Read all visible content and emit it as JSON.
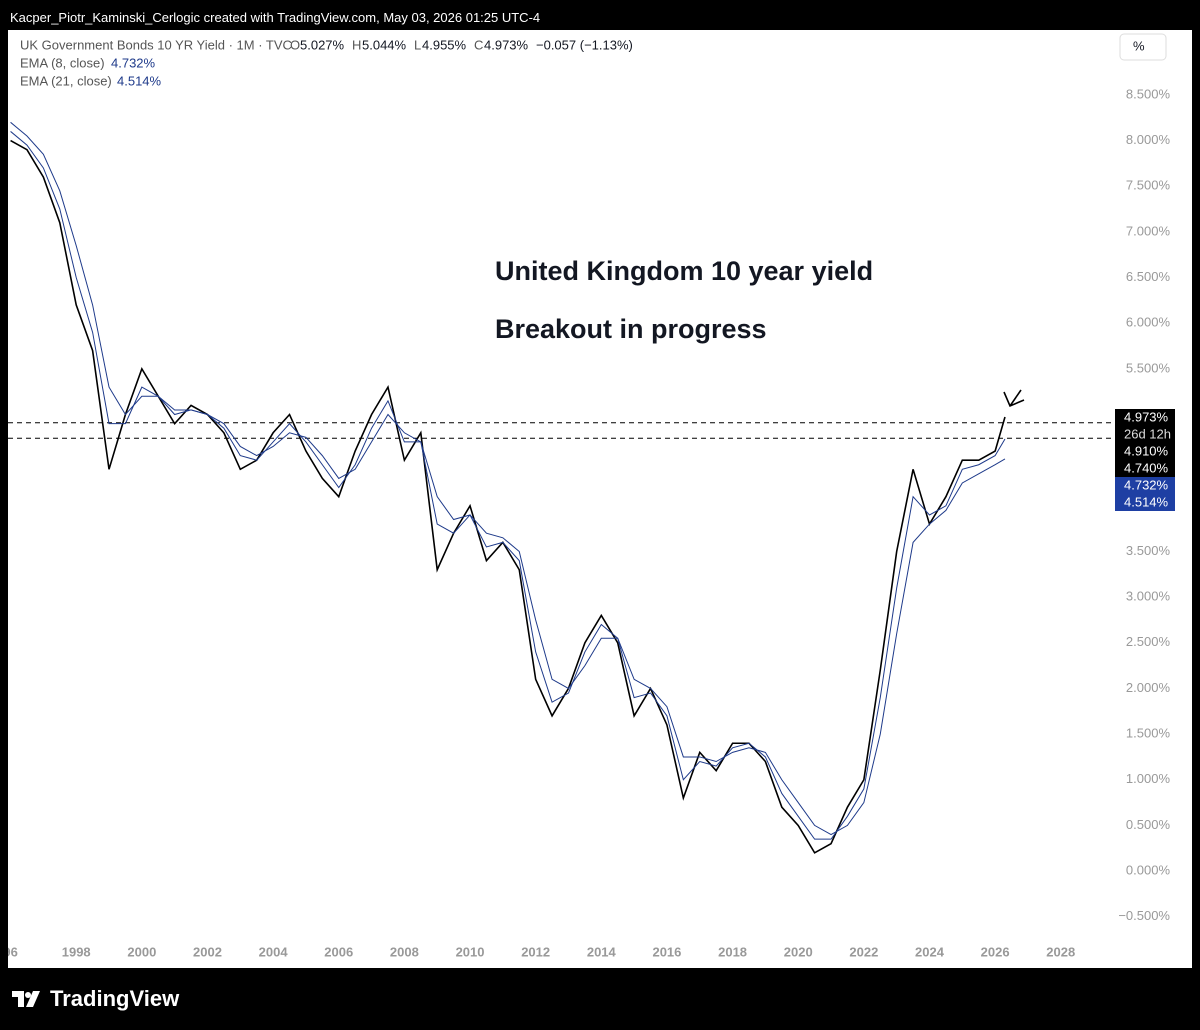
{
  "header": {
    "text": "Kacper_Piotr_Kaminski_Cerlogic created with TradingView.com, May 03, 2026 01:25 UTC-4"
  },
  "footer": {
    "brand": "TradingView"
  },
  "chart_data": {
    "type": "line",
    "legend": {
      "symbol": "UK Government Bonds 10 YR Yield · 1M · TVC",
      "o_key": "O",
      "o": "5.027%",
      "h_key": "H",
      "h": "5.044%",
      "l_key": "L",
      "l": "4.955%",
      "c_key": "C",
      "c": "4.973%",
      "change": "−0.057 (−1.13%)",
      "ema8_name": "EMA (8, close)",
      "ema8": "4.732%",
      "ema21_name": "EMA (21, close)",
      "ema21": "4.514%"
    },
    "scale_button": "%",
    "annotations": [
      "United Kingdom 10 year yield",
      "Breakout in progress"
    ],
    "x": [
      1996.0,
      1996.5,
      1997.0,
      1997.5,
      1998.0,
      1998.5,
      1999.0,
      1999.5,
      2000.0,
      2000.5,
      2001.0,
      2001.5,
      2002.0,
      2002.5,
      2003.0,
      2003.5,
      2004.0,
      2004.5,
      2005.0,
      2005.5,
      2006.0,
      2006.5,
      2007.0,
      2007.5,
      2008.0,
      2008.5,
      2009.0,
      2009.5,
      2010.0,
      2010.5,
      2011.0,
      2011.5,
      2012.0,
      2012.5,
      2013.0,
      2013.5,
      2014.0,
      2014.5,
      2015.0,
      2015.5,
      2016.0,
      2016.5,
      2017.0,
      2017.5,
      2018.0,
      2018.5,
      2019.0,
      2019.5,
      2020.0,
      2020.5,
      2021.0,
      2021.5,
      2022.0,
      2022.5,
      2023.0,
      2023.5,
      2024.0,
      2024.5,
      2025.0,
      2025.5,
      2026.0,
      2026.3
    ],
    "series": [
      {
        "name": "UK 10Y close",
        "color": "#000000",
        "values": [
          8.0,
          7.9,
          7.6,
          7.1,
          6.2,
          5.7,
          4.4,
          5.0,
          5.5,
          5.2,
          4.9,
          5.1,
          5.0,
          4.8,
          4.4,
          4.5,
          4.8,
          5.0,
          4.6,
          4.3,
          4.1,
          4.6,
          5.0,
          5.3,
          4.5,
          4.8,
          3.3,
          3.7,
          4.0,
          3.4,
          3.6,
          3.3,
          2.1,
          1.7,
          2.0,
          2.5,
          2.8,
          2.5,
          1.7,
          2.0,
          1.6,
          0.8,
          1.3,
          1.1,
          1.4,
          1.4,
          1.2,
          0.7,
          0.5,
          0.2,
          0.3,
          0.7,
          1.0,
          2.2,
          3.5,
          4.4,
          3.8,
          4.1,
          4.5,
          4.5,
          4.6,
          4.973
        ]
      },
      {
        "name": "EMA (8, close)",
        "color": "#1e3a8a",
        "values": [
          8.1,
          7.95,
          7.7,
          7.25,
          6.5,
          5.9,
          4.9,
          4.9,
          5.3,
          5.2,
          5.0,
          5.05,
          5.0,
          4.85,
          4.55,
          4.5,
          4.7,
          4.9,
          4.7,
          4.45,
          4.2,
          4.45,
          4.85,
          5.15,
          4.7,
          4.7,
          3.8,
          3.7,
          3.9,
          3.55,
          3.6,
          3.4,
          2.4,
          1.85,
          1.95,
          2.4,
          2.7,
          2.55,
          1.9,
          1.95,
          1.7,
          1.0,
          1.2,
          1.15,
          1.35,
          1.4,
          1.25,
          0.85,
          0.6,
          0.35,
          0.35,
          0.6,
          0.9,
          1.9,
          3.1,
          4.1,
          3.9,
          4.0,
          4.4,
          4.45,
          4.55,
          4.732
        ]
      },
      {
        "name": "EMA (21, close)",
        "color": "#1e3a8a",
        "values": [
          8.2,
          8.05,
          7.85,
          7.45,
          6.85,
          6.2,
          5.3,
          5.0,
          5.2,
          5.2,
          5.05,
          5.05,
          5.0,
          4.9,
          4.65,
          4.55,
          4.65,
          4.8,
          4.75,
          4.55,
          4.3,
          4.4,
          4.7,
          5.0,
          4.8,
          4.7,
          4.1,
          3.85,
          3.9,
          3.7,
          3.65,
          3.5,
          2.75,
          2.1,
          2.0,
          2.25,
          2.55,
          2.55,
          2.1,
          2.0,
          1.8,
          1.25,
          1.25,
          1.2,
          1.3,
          1.35,
          1.3,
          1.0,
          0.75,
          0.5,
          0.4,
          0.5,
          0.75,
          1.5,
          2.6,
          3.6,
          3.8,
          3.95,
          4.25,
          4.35,
          4.45,
          4.514
        ]
      }
    ],
    "hlines": [
      4.91,
      4.74
    ],
    "price_labels": [
      {
        "value": 4.973,
        "label": "4.973%",
        "color": "#000000",
        "sub": "26d 12h"
      },
      {
        "value": 4.91,
        "label": "4.910%",
        "color": "#000000"
      },
      {
        "value": 4.74,
        "label": "4.740%",
        "color": "#000000"
      },
      {
        "value": 4.732,
        "label": "4.732%",
        "color": "#1e3fa3"
      },
      {
        "value": 4.514,
        "label": "4.514%",
        "color": "#1e3fa3"
      }
    ],
    "xlim": [
      1995.8,
      2029.5
    ],
    "ylim": [
      -0.7,
      9.2
    ],
    "xticks": [
      {
        "value": 1996,
        "label": "96"
      },
      1998,
      2000,
      2002,
      2004,
      2006,
      2008,
      2010,
      2012,
      2014,
      2016,
      2018,
      2020,
      2022,
      2024,
      2026,
      2028
    ],
    "yticks": [
      {
        "value": 8.5,
        "label": "8.500%"
      },
      {
        "value": 8.0,
        "label": "8.000%"
      },
      {
        "value": 7.5,
        "label": "7.500%"
      },
      {
        "value": 7.0,
        "label": "7.000%"
      },
      {
        "value": 6.5,
        "label": "6.500%"
      },
      {
        "value": 6.0,
        "label": "6.000%"
      },
      {
        "value": 5.5,
        "label": "5.500%"
      },
      {
        "value": 3.5,
        "label": "3.500%"
      },
      {
        "value": 3.0,
        "label": "3.000%"
      },
      {
        "value": 2.5,
        "label": "2.500%"
      },
      {
        "value": 2.0,
        "label": "2.000%"
      },
      {
        "value": 1.5,
        "label": "1.500%"
      },
      {
        "value": 1.0,
        "label": "1.000%"
      },
      {
        "value": 0.5,
        "label": "0.500%"
      },
      {
        "value": 0.0,
        "label": "0.000%"
      },
      {
        "value": -0.5,
        "label": "−0.500%"
      }
    ]
  }
}
